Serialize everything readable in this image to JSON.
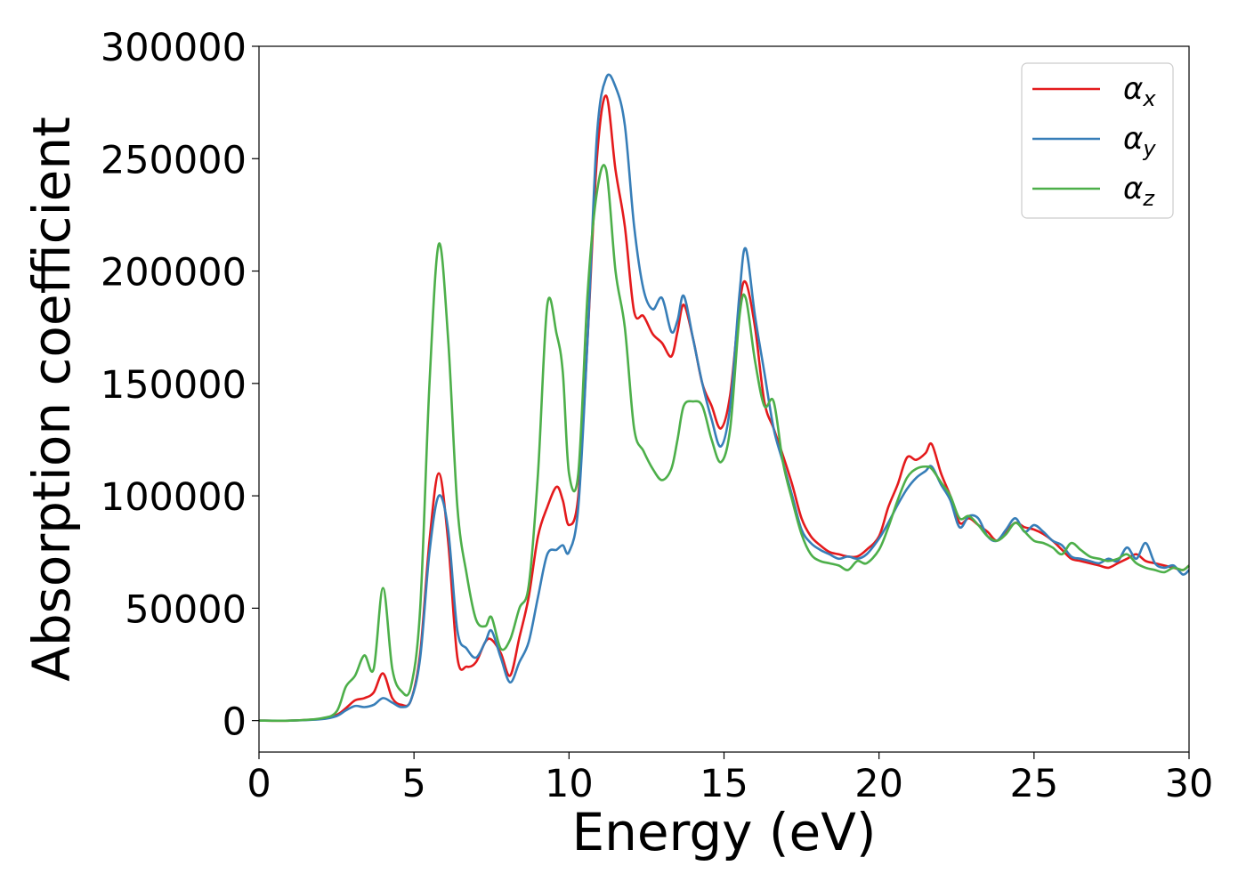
{
  "chart_data": {
    "type": "line",
    "xlabel": "Energy (eV)",
    "ylabel": "Absorption coefficient",
    "xlim": [
      0,
      30
    ],
    "ylim": [
      -14000,
      300000
    ],
    "xticks": [
      0,
      5,
      10,
      15,
      20,
      25,
      30
    ],
    "yticks": [
      0,
      50000,
      100000,
      150000,
      200000,
      250000,
      300000
    ],
    "grid": false,
    "legend_position": "top-right",
    "series": [
      {
        "name": "α",
        "subscript": "x",
        "color": "#e41a1c",
        "x": [
          0,
          1,
          2,
          2.5,
          2.8,
          3.1,
          3.4,
          3.7,
          4.0,
          4.3,
          4.6,
          4.9,
          5.2,
          5.5,
          5.8,
          6.1,
          6.4,
          6.7,
          7.0,
          7.3,
          7.5,
          7.8,
          8.1,
          8.4,
          8.7,
          9.0,
          9.3,
          9.6,
          9.8,
          10.0,
          10.3,
          10.6,
          10.9,
          11.2,
          11.5,
          11.8,
          12.1,
          12.4,
          12.7,
          13.0,
          13.3,
          13.5,
          13.7,
          14.0,
          14.3,
          14.6,
          14.9,
          15.2,
          15.5,
          15.7,
          16.0,
          16.3,
          16.6,
          16.9,
          17.2,
          17.5,
          17.8,
          18.1,
          18.4,
          18.7,
          19.0,
          19.3,
          19.6,
          20.0,
          20.3,
          20.6,
          20.9,
          21.2,
          21.5,
          21.7,
          22.0,
          22.3,
          22.6,
          22.9,
          23.2,
          23.5,
          23.8,
          24.1,
          24.4,
          24.7,
          25.0,
          25.3,
          25.6,
          25.9,
          26.2,
          26.5,
          26.8,
          27.1,
          27.4,
          27.7,
          28.0,
          28.3,
          28.6,
          28.9,
          29.2,
          29.5,
          29.8,
          30.0
        ],
        "y": [
          0,
          0,
          800,
          2500,
          5500,
          9000,
          10000,
          12500,
          21000,
          10000,
          7000,
          9000,
          30000,
          80000,
          110000,
          80000,
          28000,
          24000,
          26000,
          35000,
          36000,
          30000,
          20000,
          37000,
          55000,
          82000,
          95000,
          104000,
          98000,
          87000,
          100000,
          170000,
          250000,
          278000,
          245000,
          220000,
          182000,
          180000,
          172000,
          168000,
          162000,
          173000,
          185000,
          170000,
          150000,
          140000,
          130000,
          145000,
          185000,
          195000,
          175000,
          142000,
          130000,
          118000,
          105000,
          90000,
          82000,
          78000,
          75000,
          74000,
          73000,
          73000,
          76000,
          82000,
          95000,
          105000,
          117000,
          116000,
          119000,
          123000,
          110000,
          100000,
          88000,
          90000,
          87000,
          84000,
          80000,
          84000,
          88000,
          86000,
          85000,
          83000,
          80000,
          76000,
          72000,
          71000,
          70000,
          69000,
          68000,
          70000,
          72000,
          74000,
          71000,
          70000,
          69000,
          68000,
          67000,
          69000
        ]
      },
      {
        "name": "α",
        "subscript": "y",
        "color": "#377eb8",
        "x": [
          0,
          1,
          2,
          2.5,
          2.8,
          3.1,
          3.4,
          3.7,
          4.0,
          4.3,
          4.6,
          4.9,
          5.2,
          5.5,
          5.8,
          6.1,
          6.4,
          6.7,
          7.0,
          7.3,
          7.5,
          7.8,
          8.1,
          8.4,
          8.7,
          9.0,
          9.3,
          9.6,
          9.8,
          10.0,
          10.3,
          10.6,
          10.9,
          11.2,
          11.5,
          11.8,
          12.1,
          12.4,
          12.7,
          13.0,
          13.3,
          13.5,
          13.7,
          14.0,
          14.3,
          14.6,
          14.9,
          15.2,
          15.5,
          15.7,
          16.0,
          16.3,
          16.6,
          16.9,
          17.2,
          17.5,
          17.8,
          18.1,
          18.4,
          18.7,
          19.0,
          19.3,
          19.6,
          20.0,
          20.3,
          20.6,
          20.9,
          21.2,
          21.5,
          21.7,
          22.0,
          22.3,
          22.6,
          22.9,
          23.2,
          23.5,
          23.8,
          24.1,
          24.4,
          24.7,
          25.0,
          25.3,
          25.6,
          25.9,
          26.2,
          26.5,
          26.8,
          27.1,
          27.4,
          27.7,
          28.0,
          28.3,
          28.6,
          28.9,
          29.2,
          29.5,
          29.8,
          30.0
        ],
        "y": [
          0,
          0,
          600,
          2000,
          4500,
          6500,
          6000,
          7000,
          10000,
          8000,
          6000,
          9000,
          28000,
          75000,
          100000,
          85000,
          40000,
          32000,
          28000,
          35000,
          40000,
          28000,
          17000,
          26000,
          35000,
          55000,
          74000,
          76000,
          78000,
          75000,
          95000,
          170000,
          260000,
          286000,
          282000,
          265000,
          220000,
          192000,
          183000,
          188000,
          173000,
          178000,
          189000,
          170000,
          150000,
          134000,
          122000,
          140000,
          190000,
          210000,
          180000,
          155000,
          130000,
          115000,
          100000,
          85000,
          79000,
          76000,
          74000,
          72000,
          73000,
          72000,
          74000,
          81000,
          88000,
          96000,
          103000,
          108000,
          111000,
          113000,
          105000,
          98000,
          86000,
          91000,
          90000,
          82000,
          80000,
          85000,
          90000,
          84000,
          87000,
          84000,
          80000,
          78000,
          73000,
          72000,
          71000,
          70000,
          72000,
          71000,
          77000,
          72000,
          79000,
          70000,
          68000,
          69000,
          65000,
          67000
        ]
      },
      {
        "name": "α",
        "subscript": "z",
        "color": "#4daf4a",
        "x": [
          0,
          1,
          2,
          2.5,
          2.8,
          3.1,
          3.4,
          3.7,
          4.0,
          4.3,
          4.6,
          4.9,
          5.2,
          5.5,
          5.8,
          6.1,
          6.4,
          6.7,
          7.0,
          7.3,
          7.5,
          7.8,
          8.1,
          8.4,
          8.7,
          9.0,
          9.3,
          9.6,
          9.8,
          10.0,
          10.3,
          10.6,
          10.9,
          11.2,
          11.5,
          11.8,
          12.1,
          12.4,
          12.7,
          13.0,
          13.3,
          13.5,
          13.7,
          14.0,
          14.3,
          14.6,
          14.9,
          15.2,
          15.5,
          15.7,
          16.0,
          16.3,
          16.6,
          16.9,
          17.2,
          17.5,
          17.8,
          18.1,
          18.4,
          18.7,
          19.0,
          19.3,
          19.6,
          20.0,
          20.3,
          20.6,
          20.9,
          21.2,
          21.5,
          21.7,
          22.0,
          22.3,
          22.6,
          22.9,
          23.2,
          23.5,
          23.8,
          24.1,
          24.4,
          24.7,
          25.0,
          25.3,
          25.6,
          25.9,
          26.2,
          26.5,
          26.8,
          27.1,
          27.4,
          27.7,
          28.0,
          28.3,
          28.6,
          28.9,
          29.2,
          29.5,
          29.8,
          30.0
        ],
        "y": [
          0,
          0,
          1000,
          4000,
          15000,
          20000,
          29000,
          23000,
          59000,
          23000,
          13000,
          15000,
          50000,
          150000,
          212000,
          170000,
          95000,
          65000,
          45000,
          42000,
          46000,
          32000,
          36000,
          50000,
          60000,
          110000,
          185000,
          172000,
          155000,
          110000,
          110000,
          190000,
          235000,
          245000,
          200000,
          175000,
          130000,
          120000,
          112000,
          107000,
          112000,
          125000,
          140000,
          142000,
          140000,
          125000,
          115000,
          130000,
          180000,
          188000,
          160000,
          140000,
          142000,
          115000,
          98000,
          83000,
          74000,
          71000,
          70000,
          69000,
          67000,
          71000,
          70000,
          76000,
          86000,
          98000,
          108000,
          112000,
          113000,
          112000,
          106000,
          100000,
          90000,
          91000,
          87000,
          82000,
          80000,
          83000,
          88000,
          84000,
          80000,
          79000,
          77000,
          74000,
          79000,
          76000,
          73000,
          72000,
          71000,
          72000,
          74000,
          70000,
          68000,
          67000,
          66000,
          68000,
          67000,
          69000
        ]
      }
    ]
  }
}
